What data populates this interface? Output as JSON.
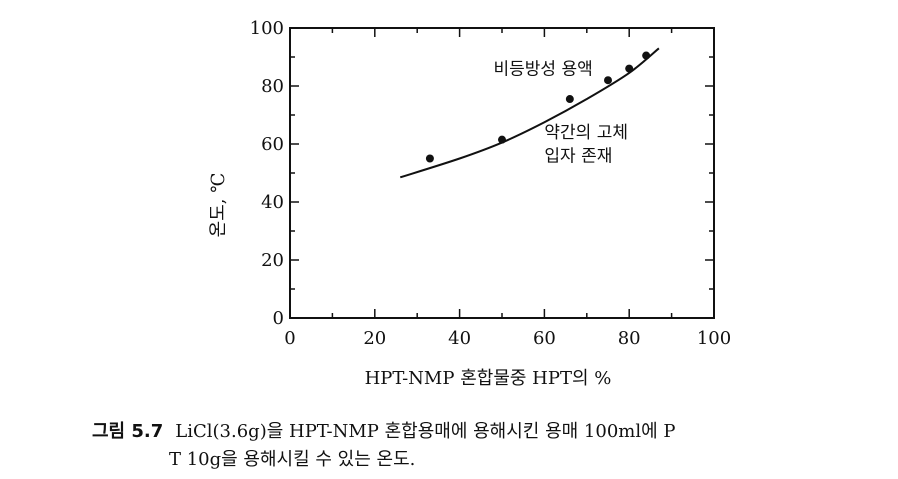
{
  "chart_data": {
    "type": "scatter",
    "xlabel": "HPT-NMP 혼합물중 HPT의 %",
    "ylabel": "온도, ℃",
    "xlim": [
      0,
      100
    ],
    "ylim": [
      0,
      100
    ],
    "x_ticks": [
      "0",
      "20",
      "40",
      "60",
      "80",
      "100"
    ],
    "y_ticks": [
      "0",
      "20",
      "40",
      "60",
      "80",
      "100"
    ],
    "grid": false,
    "points": [
      {
        "x": 33,
        "y": 55
      },
      {
        "x": 50,
        "y": 61.5
      },
      {
        "x": 66,
        "y": 75.5
      },
      {
        "x": 75,
        "y": 82
      },
      {
        "x": 80,
        "y": 86
      },
      {
        "x": 84,
        "y": 90.5
      }
    ],
    "curve": [
      {
        "x": 26,
        "y": 48.5
      },
      {
        "x": 40,
        "y": 55
      },
      {
        "x": 50,
        "y": 60.5
      },
      {
        "x": 60,
        "y": 67.5
      },
      {
        "x": 70,
        "y": 75.5
      },
      {
        "x": 80,
        "y": 84.5
      },
      {
        "x": 87,
        "y": 93
      }
    ],
    "annotations": [
      {
        "text": "비등방성 용액",
        "x": 48,
        "y": 84
      },
      {
        "text": "약간의 고체",
        "x": 60,
        "y": 62
      },
      {
        "text": "입자 존재",
        "x": 60,
        "y": 54
      }
    ]
  },
  "caption": {
    "label": "그림 5.7",
    "line1": "LiCl(3.6g)을 HPT-NMP 혼합용매에 용해시킨 용매 100ml에 P",
    "line2": "T 10g을 용해시킬 수 있는 온도."
  }
}
